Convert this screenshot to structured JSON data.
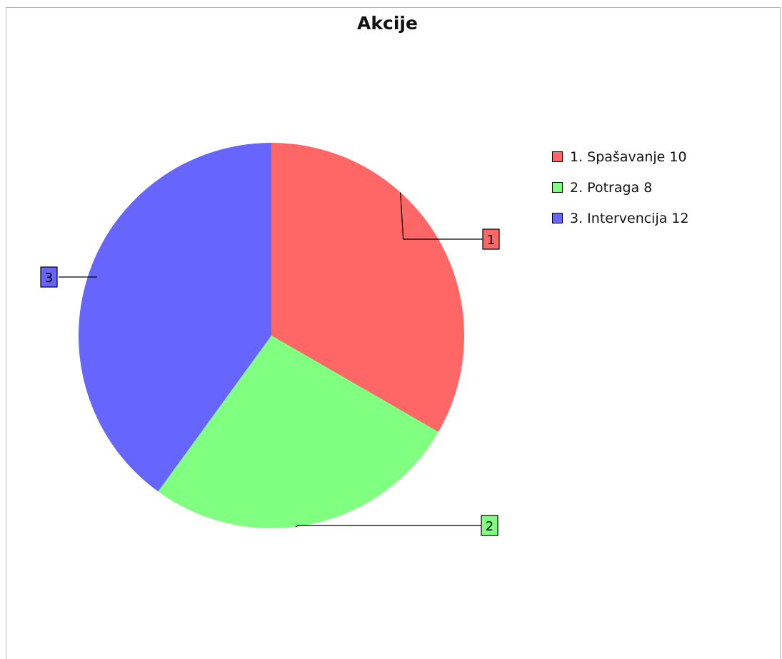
{
  "chart_data": {
    "type": "pie",
    "title": "Akcije",
    "slices": [
      {
        "tag": "1",
        "legend": "1. Spašavanje 10",
        "value": 10,
        "color": "#ff6666"
      },
      {
        "tag": "2",
        "legend": "2. Potraga 8",
        "value": 8,
        "color": "#80ff80"
      },
      {
        "tag": "3",
        "legend": "3. Intervencija 12",
        "value": 12,
        "color": "#6666ff"
      }
    ],
    "legend_position": "top-right",
    "start_angle": "top, clockwise"
  }
}
